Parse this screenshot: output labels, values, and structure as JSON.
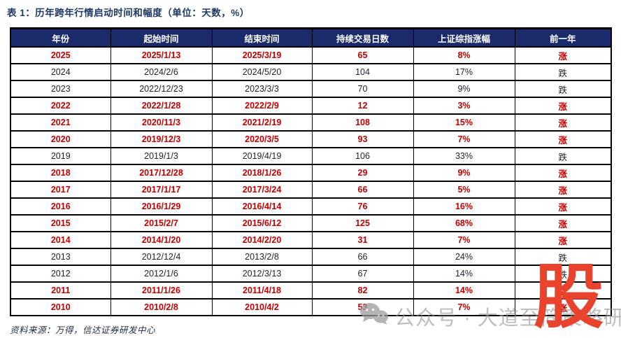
{
  "title": "表 1：历年跨年行情启动时间和幅度（单位：天数，%）",
  "table": {
    "headers": [
      "年份",
      "起始时间",
      "结束时间",
      "持续交易日数",
      "上证综指涨幅",
      "前一年"
    ],
    "rows": [
      {
        "year": "2025",
        "start": "2025/1/13",
        "end": "2025/3/19",
        "days": "65",
        "gain": "8%",
        "prev": "涨",
        "highlight": true
      },
      {
        "year": "2024",
        "start": "2024/2/6",
        "end": "2024/5/20",
        "days": "104",
        "gain": "17%",
        "prev": "跌",
        "highlight": false
      },
      {
        "year": "2023",
        "start": "2022/12/23",
        "end": "2023/3/3",
        "days": "70",
        "gain": "9%",
        "prev": "跌",
        "highlight": false
      },
      {
        "year": "2022",
        "start": "2022/1/28",
        "end": "2022/2/9",
        "days": "12",
        "gain": "3%",
        "prev": "涨",
        "highlight": true
      },
      {
        "year": "2021",
        "start": "2020/11/3",
        "end": "2021/2/19",
        "days": "108",
        "gain": "15%",
        "prev": "涨",
        "highlight": true
      },
      {
        "year": "2020",
        "start": "2019/12/3",
        "end": "2020/3/5",
        "days": "93",
        "gain": "7%",
        "prev": "涨",
        "highlight": true
      },
      {
        "year": "2019",
        "start": "2019/1/3",
        "end": "2019/4/19",
        "days": "106",
        "gain": "33%",
        "prev": "跌",
        "highlight": false
      },
      {
        "year": "2018",
        "start": "2017/12/28",
        "end": "2018/1/26",
        "days": "29",
        "gain": "9%",
        "prev": "涨",
        "highlight": true
      },
      {
        "year": "2017",
        "start": "2017/1/17",
        "end": "2017/3/24",
        "days": "66",
        "gain": "5%",
        "prev": "涨",
        "highlight": true
      },
      {
        "year": "2016",
        "start": "2016/1/29",
        "end": "2016/4/14",
        "days": "76",
        "gain": "16%",
        "prev": "涨",
        "highlight": true
      },
      {
        "year": "2015",
        "start": "2015/2/7",
        "end": "2015/6/12",
        "days": "125",
        "gain": "68%",
        "prev": "涨",
        "highlight": true
      },
      {
        "year": "2014",
        "start": "2014/1/20",
        "end": "2014/2/20",
        "days": "31",
        "gain": "7%",
        "prev": "涨",
        "highlight": true
      },
      {
        "year": "2013",
        "start": "2012/12/4",
        "end": "2013/2/8",
        "days": "66",
        "gain": "24%",
        "prev": "跌",
        "highlight": false
      },
      {
        "year": "2012",
        "start": "2012/1/6",
        "end": "2012/3/13",
        "days": "67",
        "gain": "14%",
        "prev": "跌",
        "highlight": false
      },
      {
        "year": "2011",
        "start": "2011/1/26",
        "end": "2011/4/18",
        "days": "82",
        "gain": "14%",
        "prev": "涨",
        "highlight": true
      },
      {
        "year": "2010",
        "start": "2010/2/8",
        "end": "2010/4/2",
        "days": "53",
        "gain": "7%",
        "prev": "涨",
        "highlight": true
      }
    ]
  },
  "footer": {
    "source": "资料来源：万得，信达证券研发中心"
  },
  "watermark": {
    "wechat_icon": "wechat-icon",
    "account_text": "公众号 · 大道至简策略研究",
    "logo_text": "股"
  },
  "colors": {
    "header_bg": "#1b2a6b",
    "title_navy": "#1f3864",
    "highlight_red": "#c00000",
    "body_text": "#20222e",
    "logo_red": "#e8432c",
    "watermark_grey": "#949494"
  }
}
